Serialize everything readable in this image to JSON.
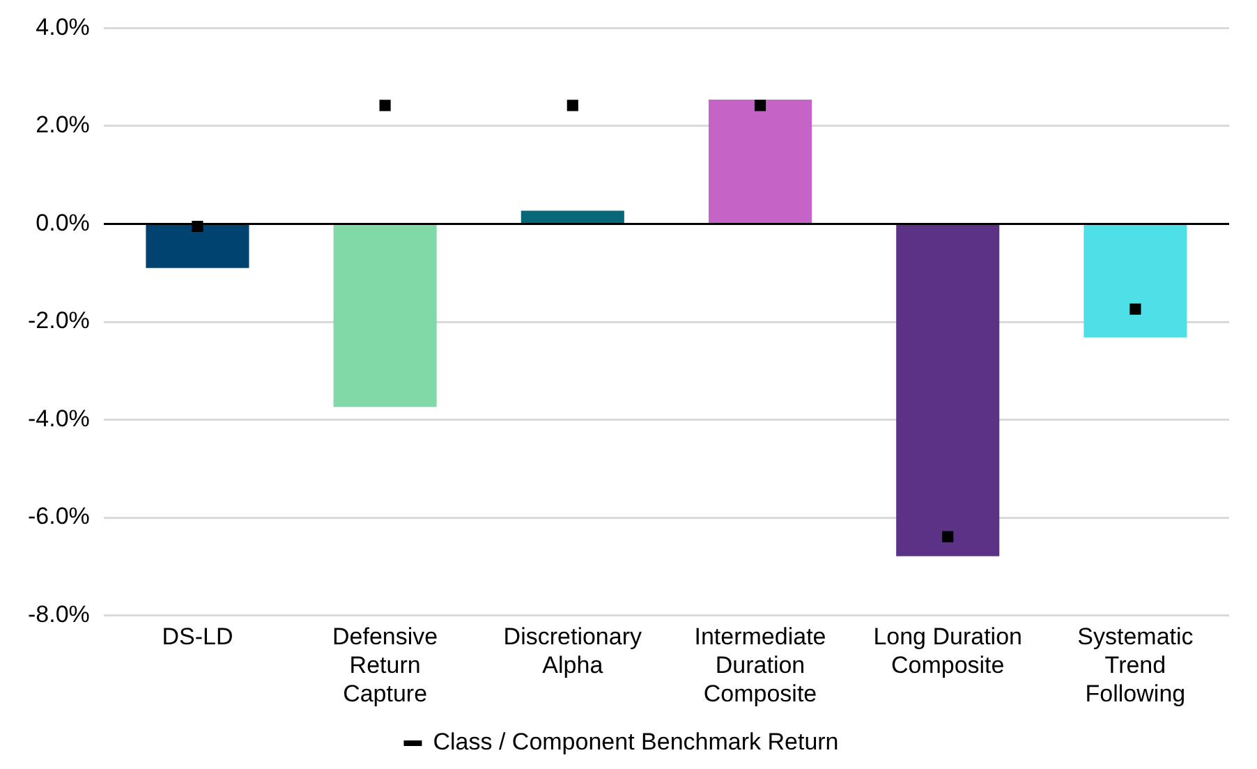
{
  "chart_data": {
    "type": "bar",
    "categories": [
      "DS-LD",
      "Defensive\nReturn\nCapture",
      "Discretionary\nAlpha",
      "Intermediate\nDuration\nComposite",
      "Long Duration\nComposite",
      "Systematic\nTrend\nFollowing"
    ],
    "series": [
      {
        "colors": [
          "#004370",
          "#7fdaa8",
          "#07687a",
          "#c663c6",
          "#5c3286",
          "#4fdfe7"
        ],
        "values": [
          -0.9,
          -3.74,
          0.27,
          2.54,
          -6.79,
          -2.32
        ]
      },
      {
        "type": "scatter",
        "name": "Class / Component Benchmark Return",
        "color": "#000000",
        "values": [
          -0.05,
          2.42,
          2.42,
          2.42,
          -6.39,
          -1.74
        ]
      }
    ],
    "ylim": [
      -8,
      4
    ],
    "yticks": [
      {
        "value": -8,
        "label": "-8.0%"
      },
      {
        "value": -6,
        "label": "-6.0%"
      },
      {
        "value": -4,
        "label": "-4.0%"
      },
      {
        "value": -2,
        "label": "-2.0%"
      },
      {
        "value": 0,
        "label": "0.0%"
      },
      {
        "value": 2,
        "label": "2.0%"
      },
      {
        "value": 4,
        "label": "4.0%"
      }
    ],
    "grid": "y",
    "legend": "bottom",
    "marker": "square"
  }
}
